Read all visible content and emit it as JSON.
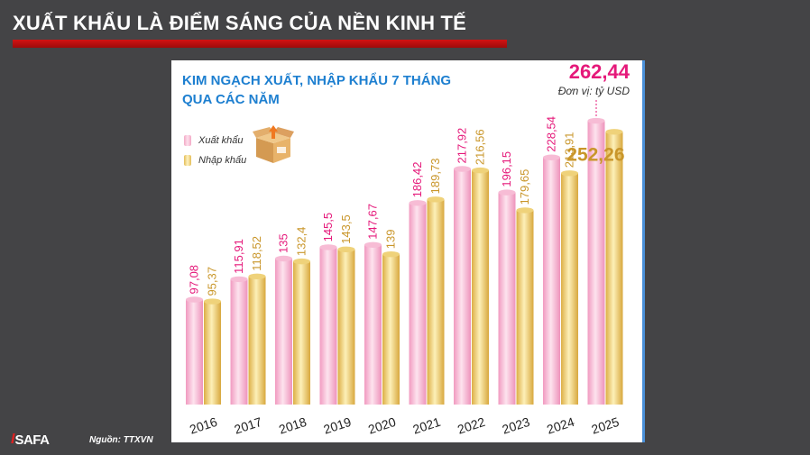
{
  "headline": "XUẤT KHẨU LÀ ĐIỂM SÁNG CỦA NỀN KINH TẾ",
  "source": "Nguồn: TTXVN",
  "logo": {
    "mark": "I",
    "text": "SAFA"
  },
  "colors": {
    "export": "#f3a9c6",
    "import": "#e8c35e",
    "export_label": "#e5197a",
    "import_label": "#c9962a",
    "title": "#1d7fd0"
  },
  "chart_data": {
    "type": "bar",
    "title": "KIM NGẠCH XUẤT, NHẬP KHẨU 7 THÁNG QUA CÁC NĂM",
    "unit": "Đơn vị: tỷ USD",
    "categories": [
      "2016",
      "2017",
      "2018",
      "2019",
      "2020",
      "2021",
      "2022",
      "2023",
      "2024",
      "2025"
    ],
    "series": [
      {
        "name": "Xuất khẩu",
        "values": [
          97.08,
          115.91,
          135,
          145.5,
          147.67,
          186.42,
          217.92,
          196.15,
          228.54,
          262.44
        ],
        "labels": [
          "97,08",
          "115,91",
          "135",
          "145,5",
          "147,67",
          "186,42",
          "217,92",
          "196,15",
          "228,54",
          "262,44"
        ]
      },
      {
        "name": "Nhập khẩu",
        "values": [
          95.37,
          118.52,
          132.4,
          143.5,
          139,
          189.73,
          216.56,
          179.65,
          213.91,
          252.26
        ],
        "labels": [
          "95,37",
          "118,52",
          "132,4",
          "143,5",
          "139",
          "189,73",
          "216,56",
          "179,65",
          "213,91",
          "252,26"
        ]
      }
    ],
    "legend_position": "left"
  }
}
